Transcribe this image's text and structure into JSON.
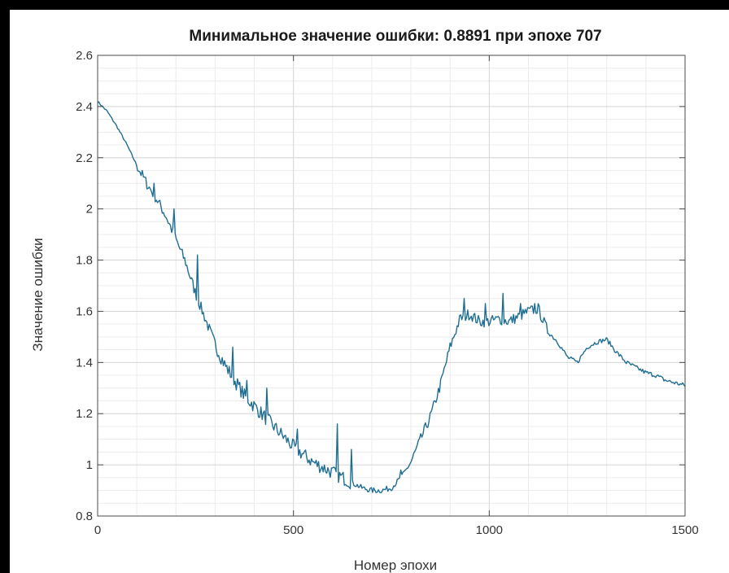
{
  "colors": {
    "frame": "#000000",
    "background": "#ffffff",
    "line": "#1f6e92",
    "grid_major": "#d4d4d4",
    "grid_minor": "#ececec",
    "axis": "#4a4a4a"
  },
  "chart_data": {
    "type": "line",
    "title": "Минимальное значение ошибки: 0.8891 при эпохе 707",
    "xlabel": "Номер эпохи",
    "ylabel": "Значение ошибки",
    "xlim": [
      0,
      1500
    ],
    "ylim": [
      0.8,
      2.6
    ],
    "xticks": [
      0,
      500,
      1000,
      1500
    ],
    "yticks": [
      0.8,
      1,
      1.2,
      1.4,
      1.6,
      1.8,
      2,
      2.2,
      2.4,
      2.6
    ],
    "grid": true,
    "minor_grid": true,
    "legend": "none",
    "series": [
      {
        "x": [
          0,
          25,
          50,
          75,
          100,
          125,
          150,
          175,
          200,
          225,
          250,
          275,
          300,
          325,
          350,
          375,
          400,
          425,
          450,
          475,
          500,
          525,
          550,
          575,
          600,
          625,
          650,
          675,
          700,
          725,
          750,
          775,
          800,
          825,
          850,
          875,
          900,
          925,
          950,
          975,
          1000,
          1025,
          1050,
          1075,
          1100,
          1125,
          1150,
          1175,
          1200,
          1225,
          1250,
          1275,
          1300,
          1325,
          1350,
          1375,
          1400,
          1425,
          1450,
          1475,
          1500
        ],
        "y": [
          2.42,
          2.38,
          2.32,
          2.25,
          2.17,
          2.1,
          2.04,
          1.97,
          1.88,
          1.79,
          1.67,
          1.57,
          1.47,
          1.39,
          1.33,
          1.27,
          1.23,
          1.19,
          1.15,
          1.11,
          1.07,
          1.04,
          1.01,
          0.99,
          0.97,
          0.95,
          0.93,
          0.91,
          0.9,
          0.9,
          0.91,
          0.95,
          1.01,
          1.1,
          1.19,
          1.31,
          1.46,
          1.57,
          1.59,
          1.56,
          1.56,
          1.57,
          1.56,
          1.58,
          1.6,
          1.61,
          1.52,
          1.48,
          1.42,
          1.4,
          1.46,
          1.48,
          1.49,
          1.44,
          1.4,
          1.38,
          1.36,
          1.35,
          1.33,
          1.32,
          1.31
        ]
      }
    ],
    "spikes": [
      {
        "x": 145,
        "y": 2.1
      },
      {
        "x": 195,
        "y": 2.0
      },
      {
        "x": 255,
        "y": 1.82
      },
      {
        "x": 345,
        "y": 1.46
      },
      {
        "x": 380,
        "y": 1.33
      },
      {
        "x": 432,
        "y": 1.3
      },
      {
        "x": 510,
        "y": 1.14
      },
      {
        "x": 612,
        "y": 1.16
      },
      {
        "x": 648,
        "y": 1.06
      },
      {
        "x": 775,
        "y": 0.98
      },
      {
        "x": 860,
        "y": 1.25
      },
      {
        "x": 935,
        "y": 1.65
      },
      {
        "x": 990,
        "y": 1.63
      },
      {
        "x": 1035,
        "y": 1.67
      },
      {
        "x": 1080,
        "y": 1.63
      },
      {
        "x": 1115,
        "y": 1.63
      }
    ]
  }
}
